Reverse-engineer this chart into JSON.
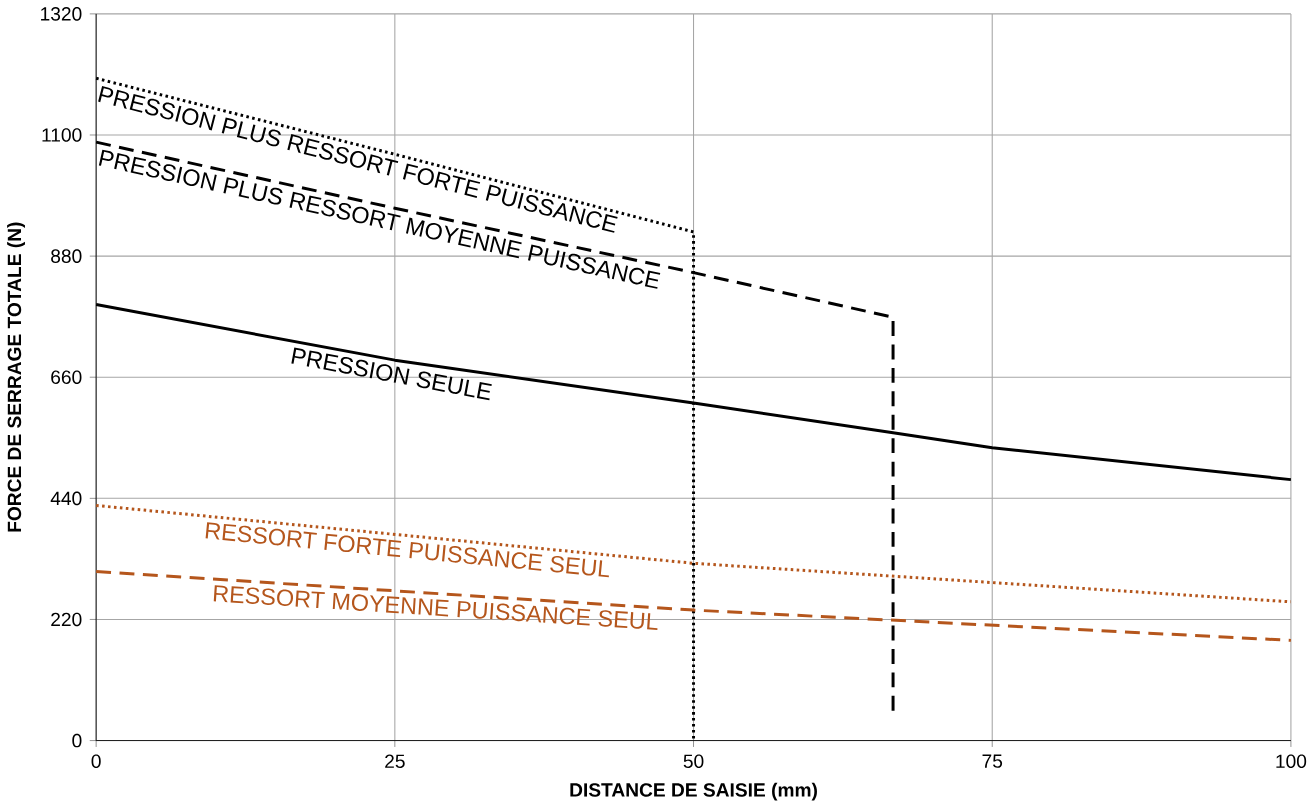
{
  "chart_data": {
    "type": "line",
    "xlabel": "DISTANCE DE SAISIE (mm)",
    "ylabel": "FORCE DE SERRAGE TOTALE (N)",
    "xlim": [
      0,
      100
    ],
    "xticks": [
      0,
      25,
      50,
      75,
      100
    ],
    "ylim": [
      0,
      1320
    ],
    "yticks": [
      0,
      220,
      440,
      660,
      880,
      1100,
      1320
    ],
    "grid": true,
    "marker": "none",
    "series": [
      {
        "name": "PRESSION PLUS RESSORT FORTE PUISSANCE",
        "color": "#000000",
        "line_style": "dotted",
        "x": [
          0,
          25,
          50,
          50
        ],
        "values": [
          1203,
          1065,
          924,
          0
        ]
      },
      {
        "name": "PRESSION PLUS RESSORT MOYENNE PUISSANCE",
        "color": "#000000",
        "line_style": "dashed",
        "x": [
          0,
          25,
          50,
          66.7,
          66.7
        ],
        "values": [
          1087,
          967,
          850,
          769,
          50
        ]
      },
      {
        "name": "PRESSION SEULE",
        "color": "#000000",
        "line_style": "solid",
        "x": [
          0,
          25,
          50,
          66.7,
          75,
          100
        ],
        "values": [
          792,
          691,
          613,
          559,
          532,
          474
        ]
      },
      {
        "name": "RESSORT FORTE PUISSANCE SEUL",
        "color": "#b5561c",
        "line_style": "dotted",
        "x": [
          0,
          50,
          100
        ],
        "values": [
          427,
          322,
          252
        ]
      },
      {
        "name": "RESSORT MOYENNE PUISSANCE SEUL",
        "color": "#b5561c",
        "line_style": "dashed",
        "x": [
          0,
          50,
          100
        ],
        "values": [
          307,
          237,
          182
        ]
      }
    ]
  }
}
